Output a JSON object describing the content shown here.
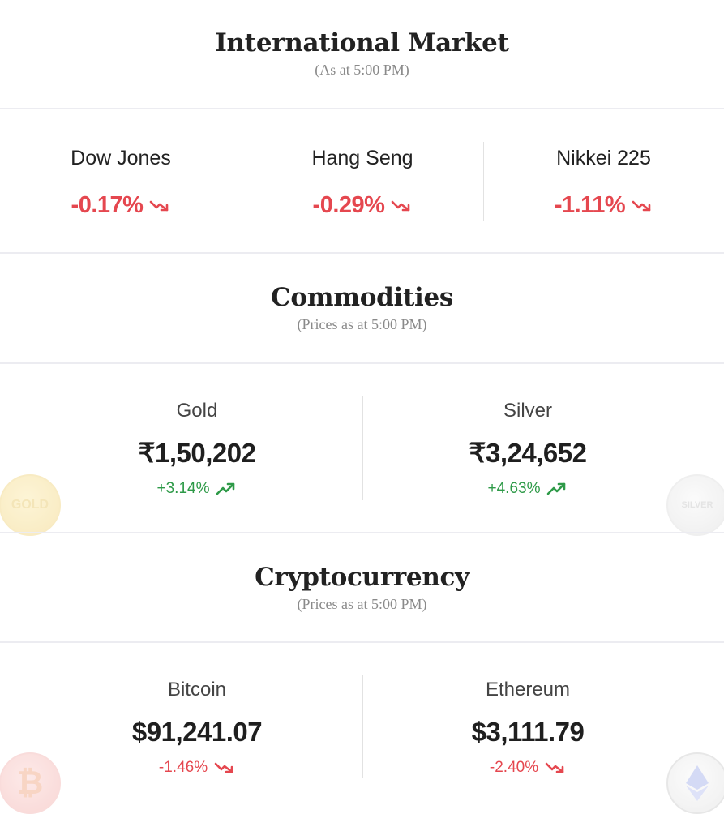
{
  "international": {
    "title": "International Market",
    "subtitle": "(As at 5:00 PM)",
    "indices": [
      {
        "name": "Dow Jones",
        "change": "-0.17%",
        "direction": "down"
      },
      {
        "name": "Hang Seng",
        "change": "-0.29%",
        "direction": "down"
      },
      {
        "name": "Nikkei 225",
        "change": "-1.11%",
        "direction": "down"
      }
    ]
  },
  "commodities": {
    "title": "Commodities",
    "subtitle": "(Prices as at 5:00 PM)",
    "items": [
      {
        "name": "Gold",
        "price": "₹1,50,202",
        "change": "+3.14%",
        "direction": "up",
        "icon": "gold-coin-icon",
        "icon_text": "GOLD"
      },
      {
        "name": "Silver",
        "price": "₹3,24,652",
        "change": "+4.63%",
        "direction": "up",
        "icon": "silver-coin-icon",
        "icon_text": "SILVER"
      }
    ]
  },
  "crypto": {
    "title": "Cryptocurrency",
    "subtitle": "(Prices as at 5:00 PM)",
    "items": [
      {
        "name": "Bitcoin",
        "price": "$91,241.07",
        "change": "-1.46%",
        "direction": "down",
        "icon": "bitcoin-coin-icon",
        "icon_text": "₿"
      },
      {
        "name": "Ethereum",
        "price": "$3,111.79",
        "change": "-2.40%",
        "direction": "down",
        "icon": "ethereum-coin-icon",
        "icon_text": ""
      }
    ]
  },
  "colors": {
    "up": "#2e9a48",
    "down": "#e5474f",
    "gold": "#f5d77a",
    "silver": "#d9d9d9",
    "bitcoin": "#f59a9a"
  }
}
